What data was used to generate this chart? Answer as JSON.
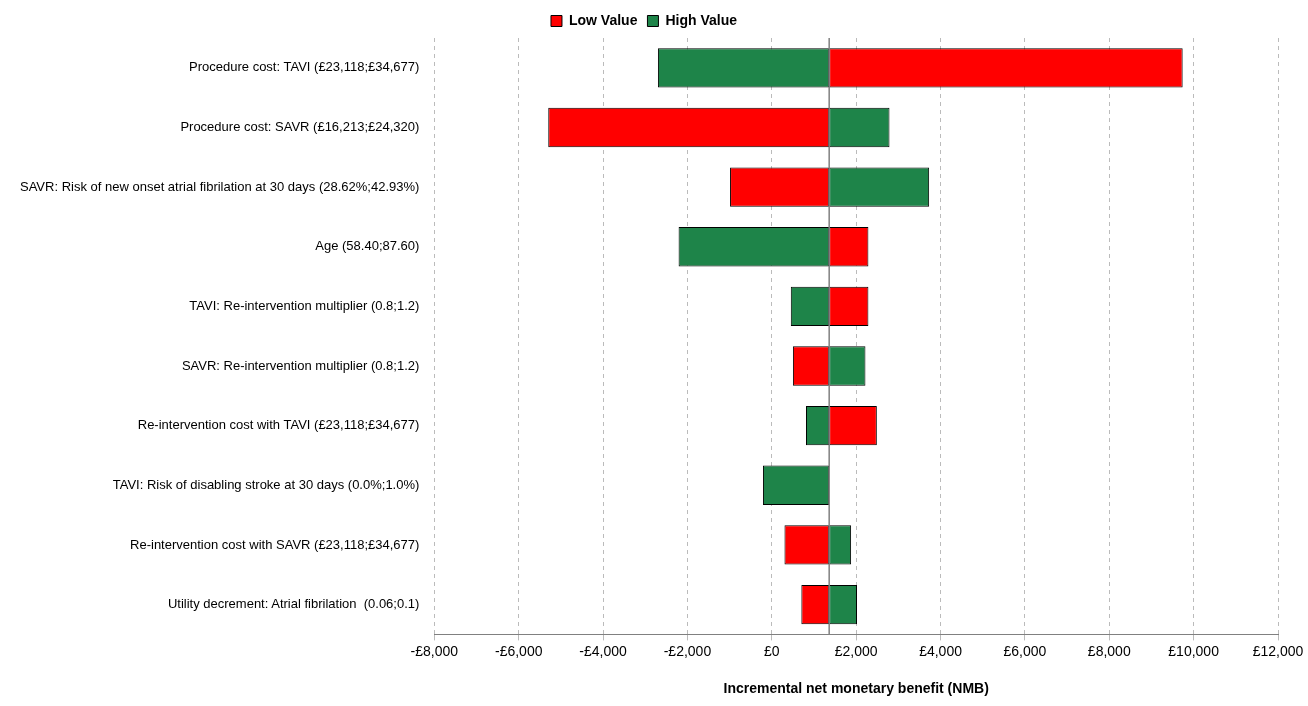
{
  "chart_data": {
    "type": "bar",
    "orientation": "horizontal",
    "xlabel": "Incremental net monetary benefit (NMB)",
    "categories": [
      "Procedure cost: TAVI (£23,118;£34,677)",
      "Procedure cost: SAVR (£16,213;£24,320)",
      "SAVR: Risk of new onset atrial fibrilation at 30 days (28.62%;42.93%)",
      "Age (58.40;87.60)",
      "TAVI: Re-intervention multiplier (0.8;1.2)",
      "SAVR: Re-intervention multiplier (0.8;1.2)",
      "Re-intervention cost with TAVI (£23,118;£34,677)",
      "TAVI: Risk of disabling stroke at 30 days (0.0%;1.0%)",
      "Re-intervention cost with SAVR (£23,118;£34,677)",
      "Utility decrement: Atrial fibrilation  (0.06;0.1)"
    ],
    "series": [
      {
        "name": "Low Value",
        "color": "#ff0000",
        "base": [
          1360,
          1360,
          1360,
          1360,
          1360,
          1360,
          1360,
          null,
          1360,
          1360
        ],
        "values": [
          8380,
          -6660,
          -2350,
          930,
          930,
          -860,
          1130,
          null,
          -1060,
          -660
        ]
      },
      {
        "name": "High Value",
        "color": "#1e8449",
        "base": [
          1360,
          1360,
          1360,
          1360,
          1360,
          1360,
          1360,
          1360,
          1360,
          1360
        ],
        "values": [
          -4060,
          1430,
          2370,
          -3570,
          -910,
          860,
          -550,
          -1570,
          520,
          660
        ]
      }
    ],
    "xlim": [
      -8000,
      12000
    ],
    "xticks": [
      {
        "value": -8000,
        "label": "-£8,000"
      },
      {
        "value": -6000,
        "label": "-£6,000"
      },
      {
        "value": -4000,
        "label": "-£4,000"
      },
      {
        "value": -2000,
        "label": "-£2,000"
      },
      {
        "value": 0,
        "label": "£0"
      },
      {
        "value": 2000,
        "label": "£2,000"
      },
      {
        "value": 4000,
        "label": "£4,000"
      },
      {
        "value": 6000,
        "label": "£6,000"
      },
      {
        "value": 8000,
        "label": "£8,000"
      },
      {
        "value": 10000,
        "label": "£10,000"
      },
      {
        "value": 12000,
        "label": "£12,000"
      }
    ],
    "ref_lines": [
      {
        "axis": "x",
        "value": 1360,
        "color": "#808080"
      }
    ],
    "grid": "x",
    "legend": "top"
  }
}
